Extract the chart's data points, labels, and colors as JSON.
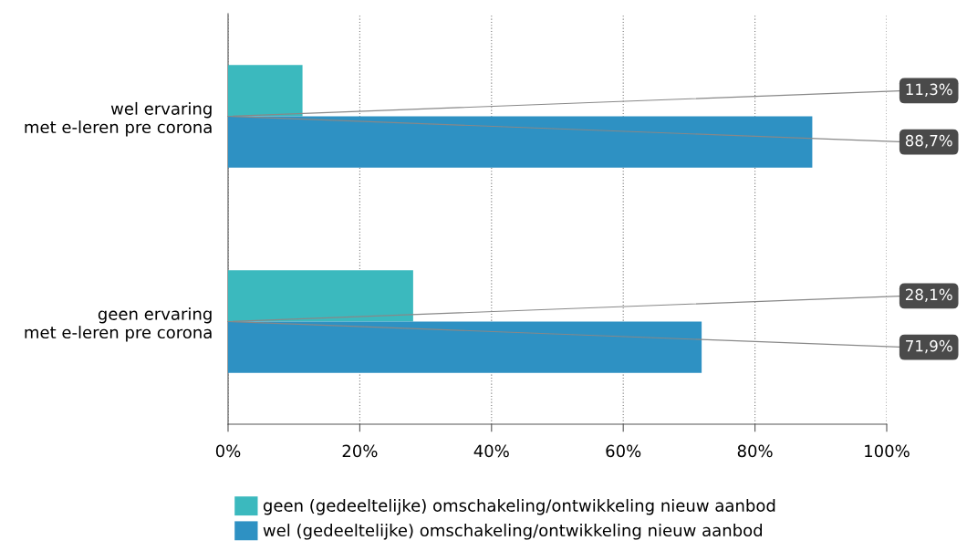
{
  "chart_data": {
    "type": "bar",
    "orientation": "horizontal",
    "categories": [
      "wel ervaring\nmet e-leren pre corona",
      "geen ervaring\nmet e-leren pre corona"
    ],
    "series": [
      {
        "name": "geen (gedeeltelijke) omschakeling/ontwikkeling nieuw aanbod",
        "color": "#3bb9be",
        "values": [
          11.3,
          28.1
        ],
        "value_labels": [
          "11,3%",
          "28,1%"
        ]
      },
      {
        "name": "wel (gedeeltelijke) omschakeling/ontwikkeling nieuw aanbod",
        "color": "#2e91c3",
        "values": [
          88.7,
          71.9
        ],
        "value_labels": [
          "88,7%",
          "71,9%"
        ]
      }
    ],
    "xlim": [
      0,
      100
    ],
    "xticks": [
      {
        "value": 0,
        "label": "0%"
      },
      {
        "value": 20,
        "label": "20%"
      },
      {
        "value": 40,
        "label": "40%"
      },
      {
        "value": 60,
        "label": "60%"
      },
      {
        "value": 80,
        "label": "80%"
      },
      {
        "value": 100,
        "label": "100%"
      }
    ],
    "grid": "x",
    "legend": "bottom"
  }
}
